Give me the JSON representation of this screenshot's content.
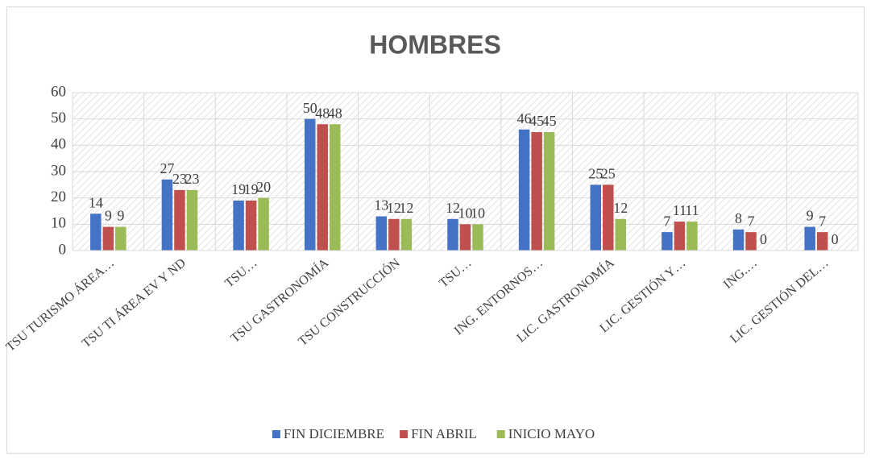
{
  "chart_data": {
    "type": "bar",
    "title": "HOMBRES",
    "categories": [
      "TSU TURISMO ÁREA…",
      "TSU TI ÁREA EV Y ND",
      "TSU…",
      "TSU GASTRONOMÍA",
      "TSU CONSTRUCCIÓN",
      "TSU…",
      "ING. ENTORNOS…",
      "LIC. GASTRONOMÍA",
      "LIC. GESTIÓN Y…",
      "ING.…",
      "LIC. GESTIÓN DEL…"
    ],
    "series": [
      {
        "name": "FIN DICIEMBRE",
        "color": "#4472c4",
        "values": [
          14,
          27,
          19,
          50,
          13,
          12,
          46,
          25,
          7,
          8,
          9
        ]
      },
      {
        "name": "FIN ABRIL",
        "color": "#c0504d",
        "values": [
          9,
          23,
          19,
          48,
          12,
          10,
          45,
          25,
          11,
          7,
          7
        ]
      },
      {
        "name": "INICIO MAYO",
        "color": "#9bbb59",
        "values": [
          9,
          23,
          20,
          48,
          12,
          10,
          45,
          12,
          11,
          0,
          0
        ]
      }
    ],
    "ylim": [
      0,
      60
    ],
    "yticks": [
      0,
      10,
      20,
      30,
      40,
      50,
      60
    ],
    "grid": true,
    "legend": "bottom"
  }
}
